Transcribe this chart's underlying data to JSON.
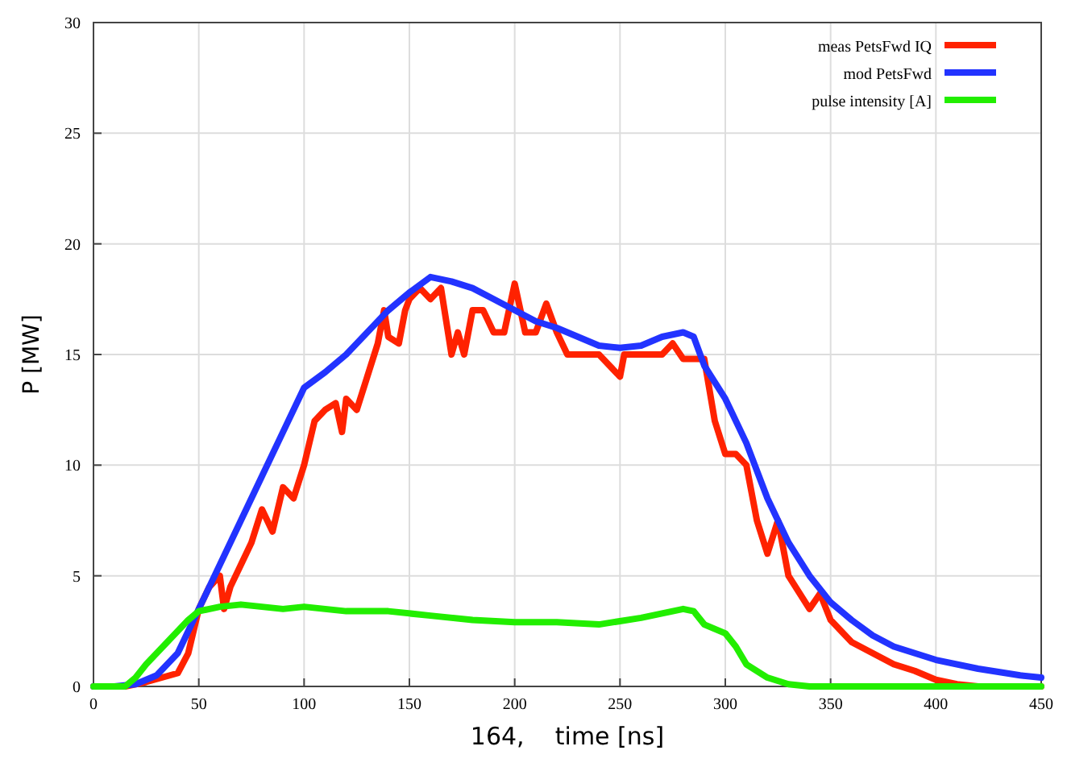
{
  "chart_data": {
    "type": "line",
    "xlabel": "164,    time [ns]",
    "ylabel": "P [MW]",
    "xlim": [
      0,
      450
    ],
    "ylim": [
      0,
      30
    ],
    "xticks": [
      0,
      50,
      100,
      150,
      200,
      250,
      300,
      350,
      400,
      450
    ],
    "yticks": [
      0,
      5,
      10,
      15,
      20,
      25,
      30
    ],
    "grid": true,
    "legend": "top right",
    "marker": "none",
    "line_style": "solid",
    "series": [
      {
        "name": "meas PetsFwd IQ",
        "color": "#ff2200",
        "x": [
          0,
          15,
          25,
          40,
          45,
          50,
          55,
          60,
          62,
          65,
          70,
          75,
          80,
          85,
          90,
          95,
          100,
          105,
          110,
          115,
          118,
          120,
          125,
          130,
          135,
          138,
          140,
          145,
          148,
          150,
          155,
          160,
          165,
          170,
          173,
          176,
          180,
          185,
          190,
          195,
          200,
          205,
          210,
          215,
          220,
          225,
          230,
          240,
          250,
          252,
          260,
          270,
          275,
          280,
          290,
          295,
          300,
          305,
          310,
          315,
          320,
          325,
          330,
          340,
          345,
          350,
          360,
          370,
          380,
          390,
          400,
          410,
          420,
          450
        ],
        "values": [
          0,
          0,
          0.2,
          0.6,
          1.5,
          3.5,
          4.5,
          5,
          3.5,
          4.5,
          5.5,
          6.5,
          8,
          7,
          9,
          8.5,
          10,
          12,
          12.5,
          12.8,
          11.5,
          13,
          12.5,
          14,
          15.5,
          17,
          15.8,
          15.5,
          17,
          17.5,
          18,
          17.5,
          18,
          15,
          16,
          15,
          17,
          17,
          16,
          16,
          18.2,
          16,
          16,
          17.3,
          16,
          15,
          15,
          15,
          14,
          15,
          15,
          15,
          15.5,
          14.8,
          14.8,
          12,
          10.5,
          10.5,
          10,
          7.5,
          6,
          7.5,
          5,
          3.5,
          4.2,
          3,
          2,
          1.5,
          1,
          0.7,
          0.3,
          0.1,
          0,
          0
        ]
      },
      {
        "name": "mod PetsFwd",
        "color": "#2233ff",
        "x": [
          0,
          10,
          20,
          30,
          40,
          50,
          60,
          70,
          80,
          90,
          100,
          110,
          120,
          130,
          140,
          150,
          160,
          170,
          180,
          190,
          200,
          210,
          220,
          230,
          240,
          250,
          260,
          270,
          280,
          285,
          290,
          300,
          310,
          320,
          330,
          340,
          350,
          360,
          370,
          380,
          390,
          400,
          420,
          440,
          450
        ],
        "values": [
          0,
          0,
          0.1,
          0.5,
          1.5,
          3.5,
          5.5,
          7.5,
          9.5,
          11.5,
          13.5,
          14.2,
          15,
          16,
          17,
          17.8,
          18.5,
          18.3,
          18,
          17.5,
          17,
          16.5,
          16.2,
          15.8,
          15.4,
          15.3,
          15.4,
          15.8,
          16,
          15.8,
          14.5,
          13,
          11,
          8.5,
          6.5,
          5,
          3.8,
          3,
          2.3,
          1.8,
          1.5,
          1.2,
          0.8,
          0.5,
          0.4
        ]
      },
      {
        "name": "pulse intensity [A]",
        "color": "#22ee00",
        "x": [
          0,
          15,
          20,
          25,
          30,
          35,
          40,
          45,
          50,
          60,
          70,
          80,
          90,
          100,
          110,
          120,
          140,
          160,
          180,
          200,
          220,
          240,
          260,
          270,
          280,
          285,
          290,
          300,
          305,
          310,
          320,
          330,
          340,
          450
        ],
        "values": [
          0,
          0,
          0.4,
          1,
          1.5,
          2,
          2.5,
          3,
          3.4,
          3.6,
          3.7,
          3.6,
          3.5,
          3.6,
          3.5,
          3.4,
          3.4,
          3.2,
          3,
          2.9,
          2.9,
          2.8,
          3.1,
          3.3,
          3.5,
          3.4,
          2.8,
          2.4,
          1.8,
          1,
          0.4,
          0.1,
          0,
          0
        ]
      }
    ]
  }
}
